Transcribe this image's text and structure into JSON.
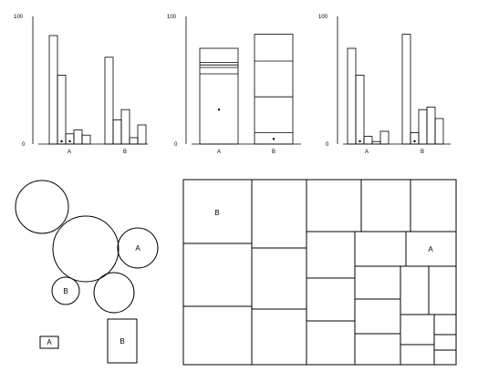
{
  "chart_data": [
    {
      "type": "bar",
      "panel": "left",
      "yticks": [
        "100",
        "0"
      ],
      "ylim": [
        0,
        100
      ],
      "categories": [
        "A",
        "B"
      ],
      "groups": [
        {
          "label": "A",
          "values": [
            85,
            54,
            8,
            11,
            7
          ],
          "dots": [
            1,
            2
          ]
        },
        {
          "label": "B",
          "values": [
            68,
            19,
            27,
            5,
            15
          ],
          "dots": []
        }
      ]
    },
    {
      "type": "stacked-bar",
      "panel": "middle",
      "yticks": [
        "100",
        "0"
      ],
      "ylim": [
        0,
        100
      ],
      "categories": [
        "A",
        "B"
      ],
      "stacks": [
        {
          "label": "A",
          "boundaries": [
            55,
            60,
            62,
            64,
            75
          ],
          "dot_value": 27
        },
        {
          "label": "B",
          "boundaries": [
            9,
            37,
            65,
            86
          ],
          "dot_value": 4
        }
      ]
    },
    {
      "type": "bar",
      "panel": "right",
      "yticks": [
        "100",
        "0"
      ],
      "ylim": [
        0,
        100
      ],
      "categories": [
        "A",
        "B"
      ],
      "groups": [
        {
          "label": "A",
          "values": [
            75,
            54,
            6,
            2,
            10
          ],
          "dots": [
            1
          ]
        },
        {
          "label": "B",
          "values": [
            86,
            9,
            27,
            29,
            20
          ],
          "dots": [
            1
          ]
        }
      ]
    }
  ],
  "bubbles": {
    "circles": [
      {
        "label": ""
      },
      {
        "label": ""
      },
      {
        "label": "A"
      },
      {
        "label": "B"
      },
      {
        "label": ""
      }
    ],
    "squares": [
      {
        "label": "A"
      },
      {
        "label": "B"
      }
    ]
  },
  "treemap": {
    "labels": [
      {
        "text": "B"
      },
      {
        "text": "A"
      }
    ]
  }
}
